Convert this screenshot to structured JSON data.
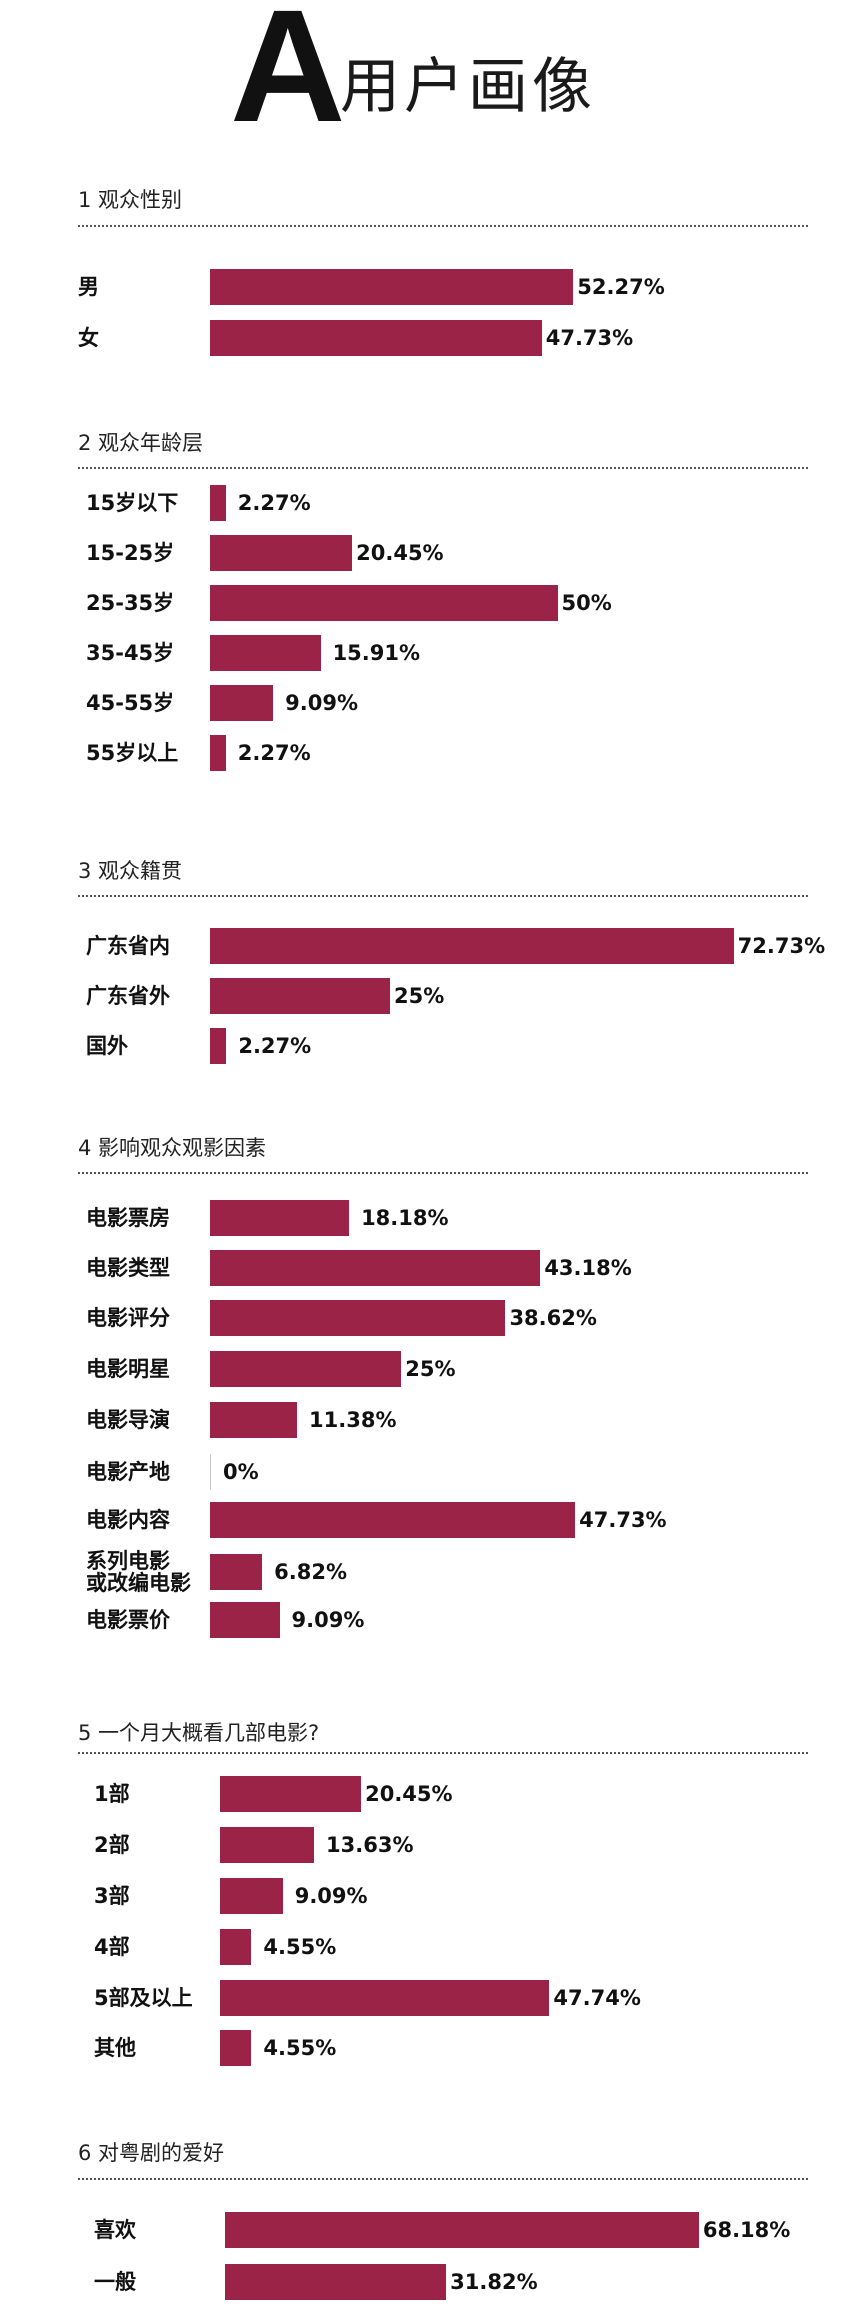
{
  "header": {
    "title_letter": "A",
    "title_text": "用户画像"
  },
  "colors": {
    "bar": "#9c2348"
  },
  "chart_data": [
    {
      "type": "bar",
      "title": "1 观众性别",
      "categories": [
        "男",
        "女"
      ],
      "values": [
        52.27,
        47.73
      ],
      "value_labels": [
        "52.27%",
        "47.73%"
      ],
      "unit": "%",
      "orientation": "horizontal"
    },
    {
      "type": "bar",
      "title": "2 观众年龄层",
      "categories": [
        "15岁以下",
        "15-25岁",
        "25-35岁",
        "35-45岁",
        "45-55岁",
        "55岁以上"
      ],
      "values": [
        2.27,
        20.45,
        50,
        15.91,
        9.09,
        2.27
      ],
      "value_labels": [
        "2.27%",
        "20.45%",
        "50%",
        "15.91%",
        "9.09%",
        "2.27%"
      ],
      "unit": "%",
      "orientation": "horizontal"
    },
    {
      "type": "bar",
      "title": "3 观众籍贯",
      "categories": [
        "广东省内",
        "广东省外",
        "国外"
      ],
      "values": [
        72.73,
        25,
        2.27
      ],
      "value_labels": [
        "72.73%",
        "25%",
        "2.27%"
      ],
      "unit": "%",
      "orientation": "horizontal"
    },
    {
      "type": "bar",
      "title": "4 影响观众观影因素",
      "categories": [
        "电影票房",
        "电影类型",
        "电影评分",
        "电影明星",
        "电影导演",
        "电影产地",
        "电影内容",
        "系列电影\n或改编电影",
        "电影票价"
      ],
      "values": [
        18.18,
        43.18,
        38.62,
        25,
        11.38,
        0,
        47.73,
        6.82,
        9.09
      ],
      "value_labels": [
        "18.18%",
        "43.18%",
        "38.62%",
        "25%",
        "11.38%",
        "0%",
        "47.73%",
        "6.82%",
        "9.09%"
      ],
      "unit": "%",
      "orientation": "horizontal"
    },
    {
      "type": "bar",
      "title": "5 一个月大概看几部电影?",
      "categories": [
        "1部",
        "2部",
        "3部",
        "4部",
        "5部及以上",
        "其他"
      ],
      "values": [
        20.45,
        13.63,
        9.09,
        4.55,
        47.74,
        4.55
      ],
      "value_labels": [
        "20.45%",
        "13.63%",
        "9.09%",
        "4.55%",
        "47.74%",
        "4.55%"
      ],
      "unit": "%",
      "orientation": "horizontal"
    },
    {
      "type": "bar",
      "title": "6 对粤剧的爱好",
      "categories": [
        "喜欢",
        "一般"
      ],
      "values": [
        68.18,
        31.82
      ],
      "value_labels": [
        "68.18%",
        "31.82%"
      ],
      "unit": "%",
      "orientation": "horizontal"
    }
  ]
}
